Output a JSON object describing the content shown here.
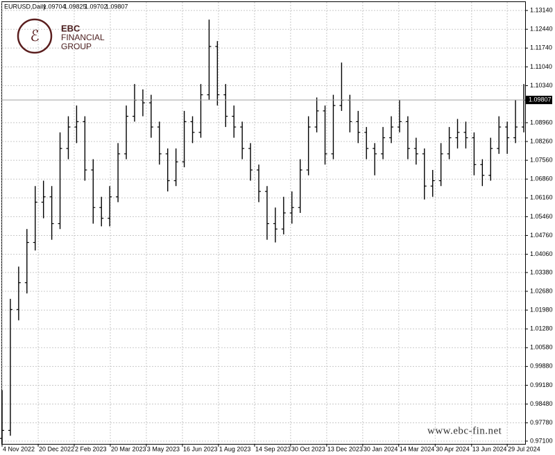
{
  "header": {
    "symbol": "EURUSD,Daily",
    "ohlc": [
      "1.09704",
      "1.09825",
      "1.09702",
      "1.09807"
    ]
  },
  "watermark": {
    "brand": "EBC",
    "line1": "FINANCIAL",
    "line2": "GROUP",
    "url": "www.ebc-fin.net"
  },
  "chart_data": {
    "type": "ohlc",
    "color": "#000000",
    "grid": true,
    "current_price": 1.09807,
    "ylim": [
      0.96996,
      1.13453
    ],
    "yticks": [
      {
        "value": 1.1314,
        "label": "1.13140"
      },
      {
        "value": 1.1244,
        "label": "1.12440"
      },
      {
        "value": 1.1174,
        "label": "1.11740"
      },
      {
        "value": 1.1104,
        "label": "1.11040"
      },
      {
        "value": 1.1034,
        "label": "1.10340"
      },
      {
        "value": 1.0896,
        "label": "1.08960"
      },
      {
        "value": 1.0826,
        "label": "1.08260"
      },
      {
        "value": 1.0756,
        "label": "1.07560"
      },
      {
        "value": 1.0686,
        "label": "1.06860"
      },
      {
        "value": 1.0616,
        "label": "1.06160"
      },
      {
        "value": 1.0546,
        "label": "1.05460"
      },
      {
        "value": 1.0476,
        "label": "1.04760"
      },
      {
        "value": 1.0406,
        "label": "1.04060"
      },
      {
        "value": 1.0338,
        "label": "1.03380"
      },
      {
        "value": 1.0268,
        "label": "1.02680"
      },
      {
        "value": 1.0198,
        "label": "1.01980"
      },
      {
        "value": 1.0128,
        "label": "1.01280"
      },
      {
        "value": 1.0058,
        "label": "1.00580"
      },
      {
        "value": 0.9988,
        "label": "0.99880"
      },
      {
        "value": 0.9918,
        "label": "0.99180"
      },
      {
        "value": 0.9848,
        "label": "0.98480"
      },
      {
        "value": 0.9778,
        "label": "0.97780"
      },
      {
        "value": 0.971,
        "label": "0.97100"
      }
    ],
    "xlim": [
      0,
      63
    ],
    "xticks": [
      {
        "value": 0,
        "label": "4 Nov 2022"
      },
      {
        "value": 4.36,
        "label": "20 Dec 2022"
      },
      {
        "value": 8.71,
        "label": "2 Feb 2023"
      },
      {
        "value": 13.07,
        "label": "20 Mar 2023"
      },
      {
        "value": 17.42,
        "label": "3 May 2023"
      },
      {
        "value": 21.78,
        "label": "16 Jun 2023"
      },
      {
        "value": 26.13,
        "label": "1 Aug 2023"
      },
      {
        "value": 30.49,
        "label": "14 Sep 2023"
      },
      {
        "value": 34.84,
        "label": "30 Oct 2023"
      },
      {
        "value": 39.2,
        "label": "13 Dec 2023"
      },
      {
        "value": 43.55,
        "label": "30 Jan 2024"
      },
      {
        "value": 47.9,
        "label": "14 Mar 2024"
      },
      {
        "value": 52.3,
        "label": "30 Apr 2024"
      },
      {
        "value": 56.7,
        "label": "13 Jun 2024"
      },
      {
        "value": 61,
        "label": "29 Jul 2024"
      }
    ],
    "open": [
      0.972,
      0.975,
      1.02,
      1.03,
      1.045,
      1.06,
      1.062,
      1.052,
      1.08,
      1.088,
      1.09,
      1.072,
      1.058,
      1.054,
      1.062,
      1.078,
      1.092,
      1.098,
      1.097,
      1.088,
      1.078,
      1.068,
      1.075,
      1.09,
      1.086,
      1.1,
      1.118,
      1.1,
      1.092,
      1.088,
      1.08,
      1.072,
      1.064,
      1.052,
      1.05,
      1.056,
      1.058,
      1.072,
      1.088,
      1.094,
      1.078,
      1.096,
      1.098,
      1.09,
      1.086,
      1.08,
      1.078,
      1.084,
      1.088,
      1.09,
      1.08,
      1.078,
      1.066,
      1.068,
      1.078,
      1.084,
      1.086,
      1.084,
      1.074,
      1.07,
      1.08,
      1.088,
      1.084,
      1.088
    ],
    "high": [
      0.99,
      1.024,
      1.036,
      1.05,
      1.066,
      1.068,
      1.066,
      1.086,
      1.092,
      1.096,
      1.092,
      1.076,
      1.062,
      1.066,
      1.082,
      1.096,
      1.104,
      1.102,
      1.1,
      1.09,
      1.08,
      1.08,
      1.094,
      1.092,
      1.104,
      1.128,
      1.12,
      1.104,
      1.096,
      1.09,
      1.082,
      1.074,
      1.066,
      1.058,
      1.062,
      1.064,
      1.076,
      1.092,
      1.099,
      1.096,
      1.1,
      1.112,
      1.1,
      1.094,
      1.088,
      1.082,
      1.088,
      1.092,
      1.098,
      1.092,
      1.084,
      1.08,
      1.072,
      1.082,
      1.088,
      1.091,
      1.09,
      1.086,
      1.076,
      1.084,
      1.092,
      1.09,
      1.098,
      1.104
    ],
    "low": [
      0.97,
      0.973,
      1.016,
      1.026,
      1.042,
      1.054,
      1.046,
      1.05,
      1.076,
      1.082,
      1.068,
      1.052,
      1.051,
      1.051,
      1.06,
      1.076,
      1.09,
      1.092,
      1.084,
      1.074,
      1.064,
      1.066,
      1.073,
      1.082,
      1.084,
      1.098,
      1.096,
      1.088,
      1.084,
      1.076,
      1.068,
      1.06,
      1.046,
      1.045,
      1.048,
      1.052,
      1.056,
      1.07,
      1.086,
      1.074,
      1.076,
      1.094,
      1.086,
      1.082,
      1.076,
      1.07,
      1.076,
      1.082,
      1.086,
      1.076,
      1.074,
      1.061,
      1.062,
      1.066,
      1.076,
      1.08,
      1.08,
      1.07,
      1.066,
      1.068,
      1.078,
      1.078,
      1.082,
      1.086
    ],
    "close": [
      0.975,
      1.02,
      1.03,
      1.045,
      1.06,
      1.062,
      1.052,
      1.08,
      1.088,
      1.09,
      1.072,
      1.058,
      1.054,
      1.062,
      1.078,
      1.092,
      1.098,
      1.097,
      1.088,
      1.078,
      1.068,
      1.075,
      1.09,
      1.086,
      1.1,
      1.118,
      1.1,
      1.092,
      1.088,
      1.08,
      1.072,
      1.064,
      1.052,
      1.05,
      1.056,
      1.058,
      1.072,
      1.088,
      1.094,
      1.078,
      1.096,
      1.098,
      1.09,
      1.086,
      1.08,
      1.078,
      1.084,
      1.088,
      1.09,
      1.08,
      1.078,
      1.066,
      1.068,
      1.078,
      1.084,
      1.086,
      1.084,
      1.074,
      1.07,
      1.08,
      1.088,
      1.084,
      1.088,
      1.098
    ]
  }
}
